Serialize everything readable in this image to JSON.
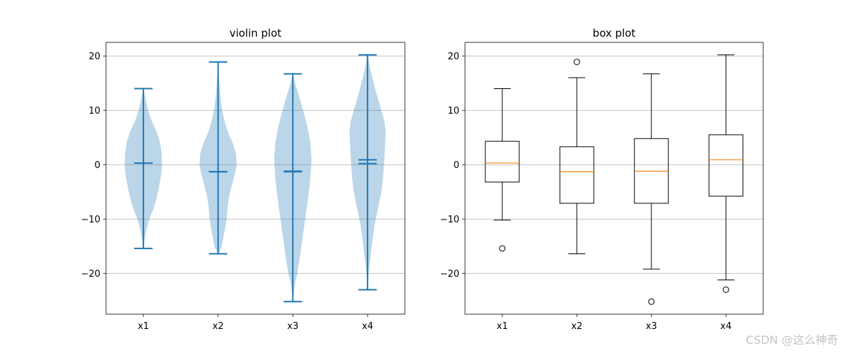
{
  "chart_data": [
    {
      "type": "violin",
      "title": "violin plot",
      "categories": [
        "x1",
        "x2",
        "x3",
        "x4"
      ],
      "ylim": [
        -27.5,
        22.5
      ],
      "yticks": [
        -20,
        -10,
        0,
        10,
        20
      ],
      "grid": "y",
      "color": "#1f77b4",
      "fill_color": "#1f77b4",
      "series": [
        {
          "category": "x1",
          "min": -15.4,
          "max": 14.0,
          "mean": 0.3,
          "median": 0.3,
          "density": [
            [
              -15.4,
              0.0
            ],
            [
              -14,
              0.06
            ],
            [
              -12,
              0.16
            ],
            [
              -10,
              0.32
            ],
            [
              -8,
              0.55
            ],
            [
              -6,
              0.72
            ],
            [
              -4,
              0.84
            ],
            [
              -2,
              0.95
            ],
            [
              0,
              1.0
            ],
            [
              2,
              0.98
            ],
            [
              4,
              0.9
            ],
            [
              6,
              0.72
            ],
            [
              8,
              0.45
            ],
            [
              10,
              0.25
            ],
            [
              12,
              0.12
            ],
            [
              14,
              0.0
            ]
          ]
        },
        {
          "category": "x2",
          "min": -16.4,
          "max": 18.9,
          "mean": -1.3,
          "median": -1.3,
          "density": [
            [
              -16.4,
              0.0
            ],
            [
              -15,
              0.2
            ],
            [
              -12,
              0.36
            ],
            [
              -10,
              0.46
            ],
            [
              -8,
              0.5
            ],
            [
              -6,
              0.58
            ],
            [
              -4,
              0.72
            ],
            [
              -2,
              0.88
            ],
            [
              0,
              1.0
            ],
            [
              2,
              0.96
            ],
            [
              4,
              0.78
            ],
            [
              6,
              0.52
            ],
            [
              8,
              0.35
            ],
            [
              10,
              0.22
            ],
            [
              12,
              0.14
            ],
            [
              15,
              0.07
            ],
            [
              18.9,
              0.0
            ]
          ]
        },
        {
          "category": "x3",
          "min": -25.2,
          "max": 16.7,
          "mean": -1.3,
          "median": -1.2,
          "density": [
            [
              -25.2,
              0.0
            ],
            [
              -22,
              0.1
            ],
            [
              -20,
              0.24
            ],
            [
              -17,
              0.38
            ],
            [
              -14,
              0.5
            ],
            [
              -11,
              0.62
            ],
            [
              -8,
              0.74
            ],
            [
              -5,
              0.86
            ],
            [
              -2,
              0.95
            ],
            [
              1,
              1.0
            ],
            [
              4,
              0.94
            ],
            [
              7,
              0.78
            ],
            [
              10,
              0.55
            ],
            [
              13,
              0.3
            ],
            [
              15,
              0.12
            ],
            [
              16.7,
              0.0
            ]
          ]
        },
        {
          "category": "x4",
          "min": -23.0,
          "max": 20.2,
          "mean": 0.2,
          "median": 0.9,
          "density": [
            [
              -23.0,
              0.0
            ],
            [
              -20,
              0.06
            ],
            [
              -17,
              0.16
            ],
            [
              -14,
              0.26
            ],
            [
              -11,
              0.38
            ],
            [
              -8,
              0.56
            ],
            [
              -5,
              0.74
            ],
            [
              -2,
              0.84
            ],
            [
              1,
              0.9
            ],
            [
              4,
              0.94
            ],
            [
              6,
              0.97
            ],
            [
              8,
              0.9
            ],
            [
              10,
              0.74
            ],
            [
              13,
              0.48
            ],
            [
              16,
              0.26
            ],
            [
              18,
              0.12
            ],
            [
              20.2,
              0.0
            ]
          ]
        }
      ]
    },
    {
      "type": "box",
      "title": "box plot",
      "categories": [
        "x1",
        "x2",
        "x3",
        "x4"
      ],
      "ylim": [
        -27.5,
        22.5
      ],
      "yticks": [
        -20,
        -10,
        0,
        10,
        20
      ],
      "grid": "y",
      "box_color": "#000000",
      "median_color": "#ff7f0e",
      "series": [
        {
          "category": "x1",
          "whisker_low": -10.2,
          "q1": -3.2,
          "median": 0.3,
          "q3": 4.3,
          "whisker_high": 14.0,
          "outliers": [
            -15.4
          ]
        },
        {
          "category": "x2",
          "whisker_low": -16.4,
          "q1": -7.1,
          "median": -1.3,
          "q3": 3.3,
          "whisker_high": 16.0,
          "outliers": [
            18.9
          ]
        },
        {
          "category": "x3",
          "whisker_low": -19.2,
          "q1": -7.1,
          "median": -1.2,
          "q3": 4.8,
          "whisker_high": 16.7,
          "outliers": [
            -25.2
          ]
        },
        {
          "category": "x4",
          "whisker_low": -21.2,
          "q1": -5.8,
          "median": 0.9,
          "q3": 5.5,
          "whisker_high": 20.2,
          "outliers": [
            -23.0
          ]
        }
      ]
    }
  ],
  "watermark": "CSDN @这么神奇"
}
